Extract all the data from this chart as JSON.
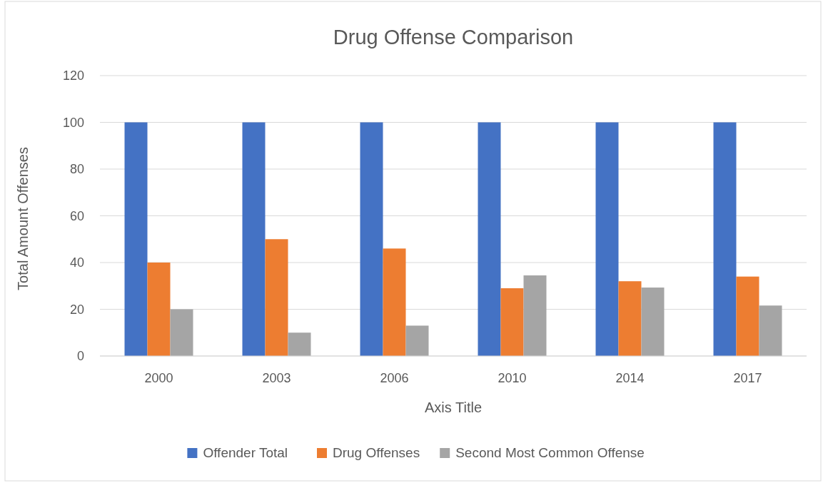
{
  "chart_data": {
    "type": "bar",
    "title": "Drug Offense Comparison",
    "xlabel": "Axis Title",
    "ylabel": "Total Amount Offenses",
    "categories": [
      "2000",
      "2003",
      "2006",
      "2010",
      "2014",
      "2017"
    ],
    "series": [
      {
        "name": "Offender Total",
        "color": "#4472c4",
        "values": [
          100,
          100,
          100,
          100,
          100,
          100
        ]
      },
      {
        "name": "Drug Offenses",
        "color": "#ed7d31",
        "values": [
          40,
          50,
          46,
          29,
          32,
          34
        ]
      },
      {
        "name": "Second Most Common Offense",
        "color": "#a5a5a5",
        "values": [
          20,
          10,
          13,
          34.5,
          29.3,
          21.6
        ]
      }
    ],
    "ylim": [
      0,
      120
    ],
    "yticks": [
      0,
      20,
      40,
      60,
      80,
      100,
      120
    ],
    "grid": "y",
    "legend": "bottom"
  }
}
